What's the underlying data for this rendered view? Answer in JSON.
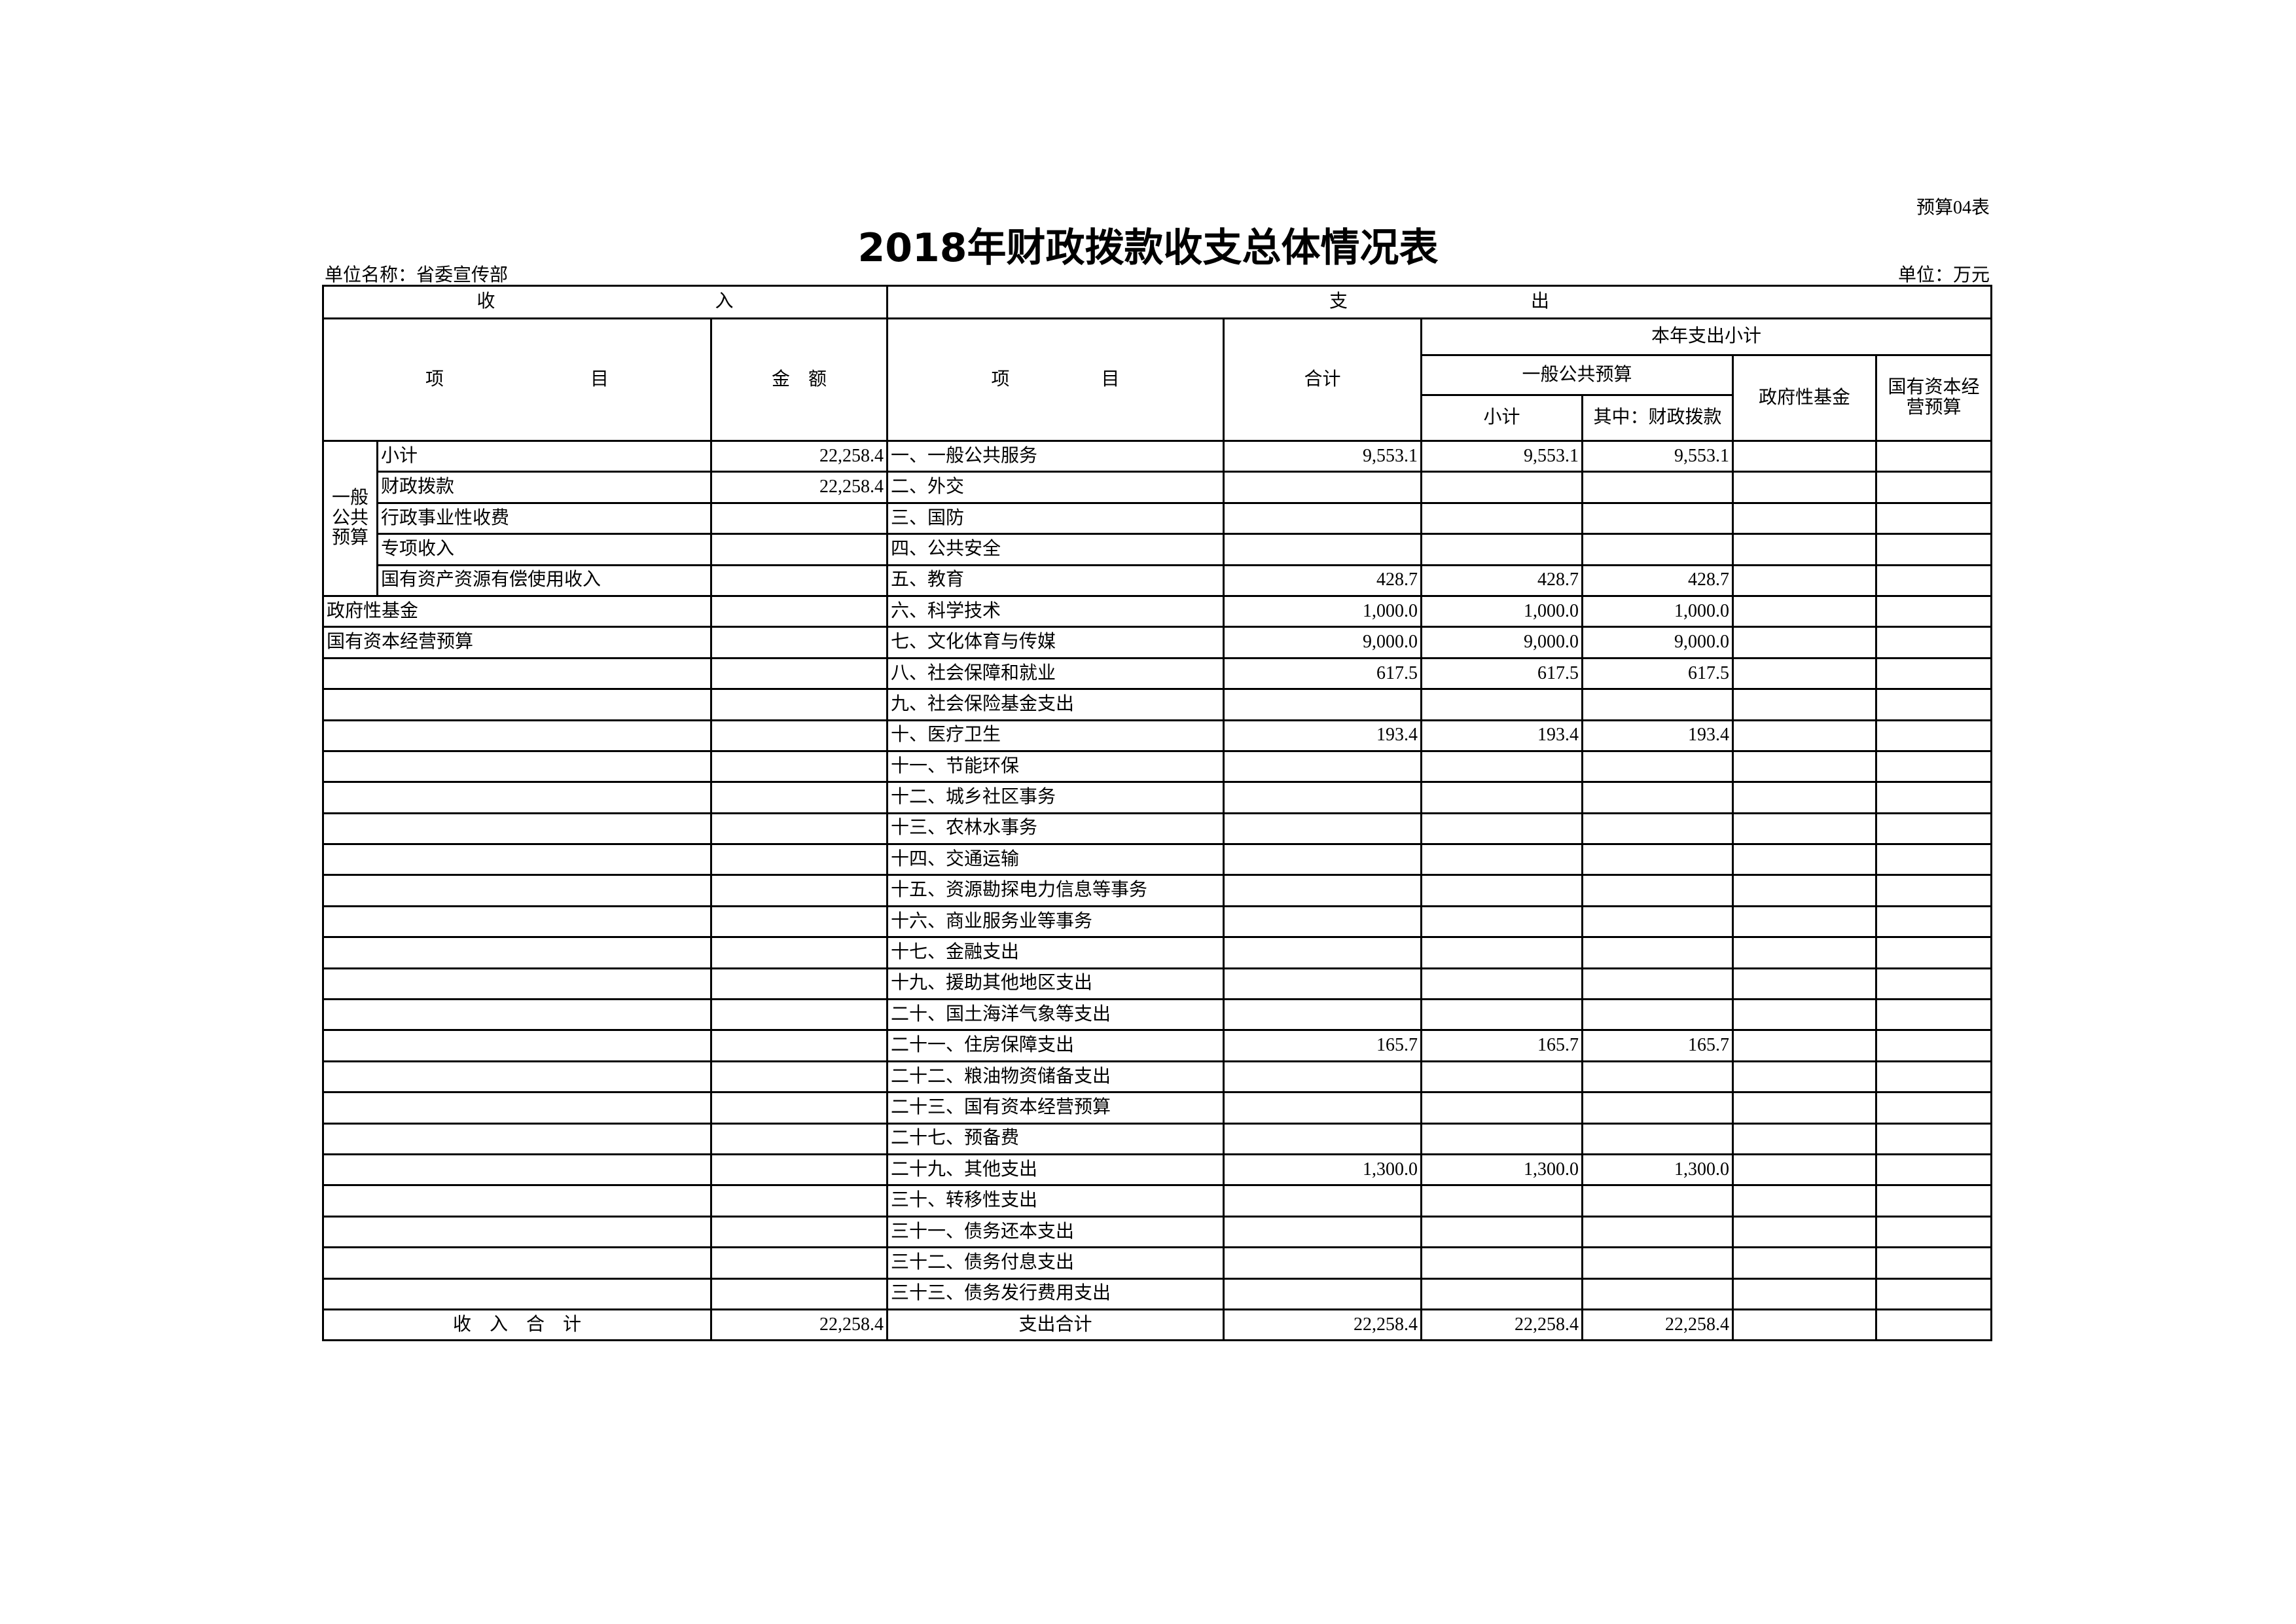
{
  "form_no": "预算04表",
  "title": "2018年财政拨款收支总体情况表",
  "unit_name": "单位名称：省委宣传部",
  "unit": "单位：万元",
  "header": {
    "income": "收　　　　　　　　　　　　入",
    "expenditure": "支　　　　　　　　　　出",
    "item": "项　　　　　　　　目",
    "amount": "金　额",
    "exp_item": "项　　　　　目",
    "total": "合计",
    "year_subtotal": "本年支出小计",
    "general_budget": "一般公共预算",
    "subtotal": "小计",
    "of_which_fiscal": "其中：财政拨款",
    "gov_fund": "政府性基金",
    "state_capital": "国有资本经营预算"
  },
  "income_group": "一般公共预算",
  "income_rows": [
    {
      "label": "小计",
      "amount": "22,258.4"
    },
    {
      "label": "财政拨款",
      "amount": "22,258.4"
    },
    {
      "label": "行政事业性收费",
      "amount": ""
    },
    {
      "label": "专项收入",
      "amount": ""
    },
    {
      "label": "国有资产资源有偿使用收入",
      "amount": ""
    },
    {
      "label": "政府性基金",
      "amount": ""
    },
    {
      "label": "国有资本经营预算",
      "amount": ""
    }
  ],
  "income_total": {
    "label": "收　入　合　计",
    "amount": "22,258.4"
  },
  "expenditure_rows": [
    {
      "label": "一、一般公共服务",
      "values": [
        "9,553.1",
        "9,553.1",
        "9,553.1",
        "",
        ""
      ]
    },
    {
      "label": "二、外交",
      "values": [
        "",
        "",
        "",
        "",
        ""
      ]
    },
    {
      "label": "三、国防",
      "values": [
        "",
        "",
        "",
        "",
        ""
      ]
    },
    {
      "label": "四、公共安全",
      "values": [
        "",
        "",
        "",
        "",
        ""
      ]
    },
    {
      "label": "五、教育",
      "values": [
        "428.7",
        "428.7",
        "428.7",
        "",
        ""
      ]
    },
    {
      "label": "六、科学技术",
      "values": [
        "1,000.0",
        "1,000.0",
        "1,000.0",
        "",
        ""
      ]
    },
    {
      "label": "七、文化体育与传媒",
      "values": [
        "9,000.0",
        "9,000.0",
        "9,000.0",
        "",
        ""
      ]
    },
    {
      "label": "八、社会保障和就业",
      "values": [
        "617.5",
        "617.5",
        "617.5",
        "",
        ""
      ]
    },
    {
      "label": "九、社会保险基金支出",
      "values": [
        "",
        "",
        "",
        "",
        ""
      ]
    },
    {
      "label": "十、医疗卫生",
      "values": [
        "193.4",
        "193.4",
        "193.4",
        "",
        ""
      ]
    },
    {
      "label": "十一、节能环保",
      "values": [
        "",
        "",
        "",
        "",
        ""
      ]
    },
    {
      "label": "十二、城乡社区事务",
      "values": [
        "",
        "",
        "",
        "",
        ""
      ]
    },
    {
      "label": "十三、农林水事务",
      "values": [
        "",
        "",
        "",
        "",
        ""
      ]
    },
    {
      "label": "十四、交通运输",
      "values": [
        "",
        "",
        "",
        "",
        ""
      ]
    },
    {
      "label": "十五、资源勘探电力信息等事务",
      "values": [
        "",
        "",
        "",
        "",
        ""
      ]
    },
    {
      "label": "十六、商业服务业等事务",
      "values": [
        "",
        "",
        "",
        "",
        ""
      ]
    },
    {
      "label": "十七、金融支出",
      "values": [
        "",
        "",
        "",
        "",
        ""
      ]
    },
    {
      "label": "十九、援助其他地区支出",
      "values": [
        "",
        "",
        "",
        "",
        ""
      ]
    },
    {
      "label": "二十、国土海洋气象等支出",
      "values": [
        "",
        "",
        "",
        "",
        ""
      ]
    },
    {
      "label": "二十一、住房保障支出",
      "values": [
        "165.7",
        "165.7",
        "165.7",
        "",
        ""
      ]
    },
    {
      "label": "二十二、粮油物资储备支出",
      "values": [
        "",
        "",
        "",
        "",
        ""
      ]
    },
    {
      "label": "二十三、国有资本经营预算",
      "values": [
        "",
        "",
        "",
        "",
        ""
      ]
    },
    {
      "label": "二十七、预备费",
      "values": [
        "",
        "",
        "",
        "",
        ""
      ]
    },
    {
      "label": "二十九、其他支出",
      "values": [
        "1,300.0",
        "1,300.0",
        "1,300.0",
        "",
        ""
      ]
    },
    {
      "label": "三十、转移性支出",
      "values": [
        "",
        "",
        "",
        "",
        ""
      ]
    },
    {
      "label": "三十一、债务还本支出",
      "values": [
        "",
        "",
        "",
        "",
        ""
      ]
    },
    {
      "label": "三十二、债务付息支出",
      "values": [
        "",
        "",
        "",
        "",
        ""
      ]
    },
    {
      "label": "三十三、债务发行费用支出",
      "values": [
        "",
        "",
        "",
        "",
        ""
      ]
    }
  ],
  "expenditure_total": {
    "label": "支出合计",
    "values": [
      "22,258.4",
      "22,258.4",
      "22,258.4",
      "",
      ""
    ]
  }
}
